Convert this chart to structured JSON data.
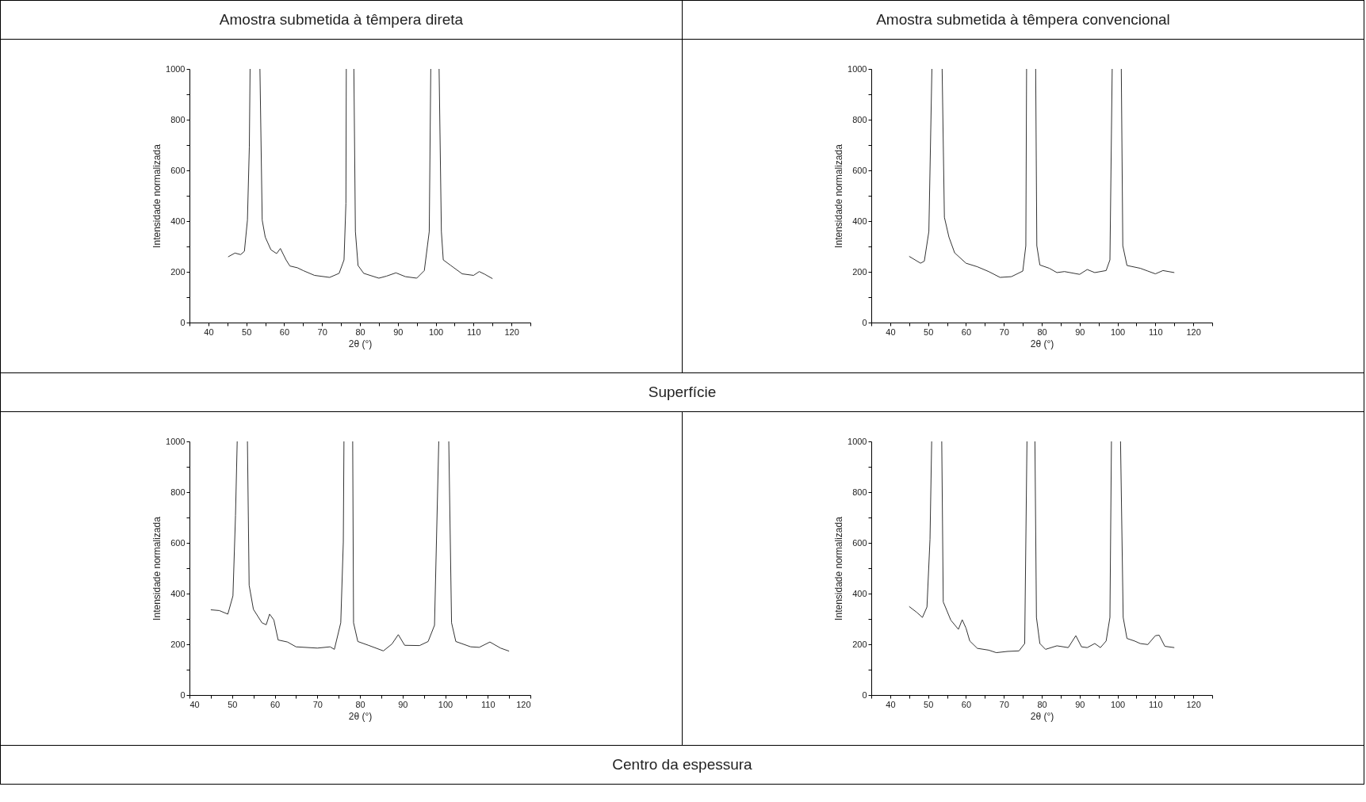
{
  "chart_data": [
    {
      "type": "line",
      "title": "Amostra submetida à têmpera direta",
      "annotations": [
        "Superfície"
      ],
      "xlabel": "2θ (°)",
      "ylabel": "Intensidade normalizada",
      "xlim": [
        35,
        125
      ],
      "xticks": [
        {
          "value": 35,
          "label": null
        },
        40,
        {
          "value": 45,
          "label": null
        },
        50,
        {
          "value": 55,
          "label": null
        },
        60,
        {
          "value": 65,
          "label": null
        },
        70,
        {
          "value": 75,
          "label": null
        },
        80,
        {
          "value": 85,
          "label": null
        },
        90,
        {
          "value": 95,
          "label": null
        },
        100,
        {
          "value": 105,
          "label": null
        },
        110,
        {
          "value": 115,
          "label": null
        },
        120,
        {
          "value": 125,
          "label": null
        }
      ],
      "ylim": [
        0,
        1000
      ],
      "yticks": [
        0,
        {
          "value": 100,
          "label": null
        },
        200,
        {
          "value": 300,
          "label": null
        },
        400,
        {
          "value": 500,
          "label": null
        },
        600,
        {
          "value": 700,
          "label": null
        },
        800,
        {
          "value": 900,
          "label": null
        },
        1000
      ],
      "series": [
        {
          "color": "#333333",
          "x": [
            45.2,
            47,
            48.5,
            49.5,
            50.3,
            50.8,
            51.0,
            52.3,
            53.6,
            54.2,
            55,
            56.5,
            58,
            59,
            60.5,
            61.5,
            63.5,
            65,
            68,
            72,
            74.5,
            75.8,
            76.3,
            76.4,
            77.4,
            78.4,
            78.8,
            79.5,
            81,
            85,
            87,
            89.5,
            92,
            95,
            97,
            98.3,
            98.7,
            99.8,
            100.9,
            101.5,
            102,
            104,
            107,
            110,
            111.5,
            113,
            115
          ],
          "values": [
            259,
            274,
            268,
            281,
            404,
            693,
            1000,
            null,
            1000,
            404,
            337,
            287,
            272,
            292,
            247,
            223,
            216,
            205,
            186,
            178,
            194,
            247,
            470,
            1000,
            null,
            1000,
            359,
            225,
            194,
            175,
            183,
            196,
            181,
            175,
            205,
            359,
            1000,
            null,
            1000,
            359,
            247,
            225,
            192,
            186,
            201,
            190,
            173
          ]
        }
      ]
    },
    {
      "type": "line",
      "title": "Amostra submetida à têmpera convencional",
      "xlabel": "2θ (°)",
      "ylabel": "Intensidade normalizada",
      "xlim": [
        35,
        125
      ],
      "xticks": [
        {
          "value": 35,
          "label": null
        },
        40,
        {
          "value": 45,
          "label": null
        },
        50,
        {
          "value": 55,
          "label": null
        },
        60,
        {
          "value": 65,
          "label": null
        },
        70,
        {
          "value": 75,
          "label": null
        },
        80,
        {
          "value": 85,
          "label": null
        },
        90,
        {
          "value": 95,
          "label": null
        },
        100,
        {
          "value": 105,
          "label": null
        },
        110,
        {
          "value": 115,
          "label": null
        },
        120,
        {
          "value": 125,
          "label": null
        }
      ],
      "ylim": [
        0,
        1000
      ],
      "yticks": [
        0,
        {
          "value": 100,
          "label": null
        },
        200,
        {
          "value": 300,
          "label": null
        },
        400,
        {
          "value": 500,
          "label": null
        },
        600,
        {
          "value": 700,
          "label": null
        },
        800,
        {
          "value": 900,
          "label": null
        },
        1000
      ],
      "series": [
        {
          "color": "#333333",
          "x": [
            45,
            48,
            49,
            50.2,
            51.0,
            52.3,
            53.7,
            54.3,
            55.5,
            57,
            60,
            63,
            66,
            69,
            72,
            75,
            75.8,
            76.0,
            77.2,
            78.4,
            78.7,
            79.5,
            82,
            84,
            86,
            90,
            92,
            94,
            97,
            98,
            98.6,
            99.8,
            101.0,
            101.4,
            102.5,
            106,
            108,
            110,
            112,
            115
          ],
          "values": [
            261,
            234,
            242,
            359,
            1000,
            null,
            1000,
            415,
            337,
            275,
            234,
            220,
            201,
            178,
            181,
            203,
            303,
            1000,
            null,
            1000,
            303,
            227,
            214,
            197,
            201,
            190,
            209,
            197,
            205,
            247,
            1000,
            null,
            1000,
            303,
            225,
            214,
            203,
            192,
            205,
            197
          ]
        }
      ]
    },
    {
      "type": "line",
      "annotations": [
        "Centro da espessura"
      ],
      "xlabel": "2θ (°)",
      "ylabel": "Intensidade normalizada",
      "xlim": [
        40,
        120
      ],
      "xticks": [
        40,
        {
          "value": 45,
          "label": null
        },
        50,
        {
          "value": 55,
          "label": null
        },
        60,
        {
          "value": 65,
          "label": null
        },
        70,
        {
          "value": 75,
          "label": null
        },
        80,
        {
          "value": 85,
          "label": null
        },
        90,
        {
          "value": 95,
          "label": null
        },
        100,
        {
          "value": 105,
          "label": null
        },
        110,
        {
          "value": 115,
          "label": null
        },
        120
      ],
      "ylim": [
        0,
        1000
      ],
      "yticks": [
        0,
        {
          "value": 100,
          "label": null
        },
        200,
        {
          "value": 300,
          "label": null
        },
        400,
        {
          "value": 500,
          "label": null
        },
        600,
        {
          "value": 700,
          "label": null
        },
        800,
        {
          "value": 900,
          "label": null
        },
        1000
      ],
      "series": [
        {
          "color": "#333333",
          "x": [
            45,
            47,
            49,
            50.2,
            50.8,
            51.2,
            52.4,
            53.6,
            54,
            55,
            57,
            58,
            58.8,
            59.8,
            60.8,
            63,
            65,
            70,
            73,
            74,
            75.5,
            76.1,
            76.25,
            77.3,
            78.3,
            78.5,
            79.5,
            82,
            85.5,
            87.5,
            89,
            90.5,
            94,
            96,
            97.5,
            98.5,
            99.7,
            100.85,
            101.5,
            102.5,
            106,
            108,
            110.5,
            113,
            115
          ],
          "values": [
            336,
            333,
            319,
            391,
            708,
            1000,
            null,
            1000,
            433,
            338,
            285,
            277,
            319,
            296,
            217,
            209,
            190,
            185,
            190,
            180,
            285,
            603,
            1000,
            null,
            1000,
            285,
            211,
            196,
            174,
            201,
            238,
            196,
            195,
            211,
            275,
            1000,
            null,
            1000,
            285,
            211,
            190,
            188,
            209,
            185,
            173
          ]
        }
      ]
    },
    {
      "type": "line",
      "xlabel": "2θ (°)",
      "ylabel": "Intensidade normalizada",
      "xlim": [
        35,
        125
      ],
      "xticks": [
        {
          "value": 35,
          "label": null
        },
        40,
        {
          "value": 45,
          "label": null
        },
        50,
        {
          "value": 55,
          "label": null
        },
        60,
        {
          "value": 65,
          "label": null
        },
        70,
        {
          "value": 75,
          "label": null
        },
        80,
        {
          "value": 85,
          "label": null
        },
        90,
        {
          "value": 95,
          "label": null
        },
        100,
        {
          "value": 105,
          "label": null
        },
        110,
        {
          "value": 115,
          "label": null
        },
        120,
        {
          "value": 125,
          "label": null
        }
      ],
      "ylim": [
        0,
        1000
      ],
      "yticks": [
        0,
        {
          "value": 100,
          "label": null
        },
        200,
        {
          "value": 300,
          "label": null
        },
        400,
        {
          "value": 500,
          "label": null
        },
        600,
        {
          "value": 700,
          "label": null
        },
        800,
        {
          "value": 900,
          "label": null
        },
        1000
      ],
      "series": [
        {
          "color": "#333333",
          "x": [
            45,
            47,
            48.5,
            49.7,
            50.5,
            50.94,
            52.3,
            53.6,
            54,
            56,
            58,
            59,
            60,
            61,
            63,
            66,
            68,
            71,
            74,
            75.5,
            76.1,
            77.2,
            78.2,
            78.6,
            79.5,
            81,
            84,
            87,
            89,
            90.5,
            92,
            94,
            95.5,
            97,
            98,
            98.4,
            99.6,
            100.8,
            101.5,
            102.5,
            104.5,
            106,
            108,
            110,
            111,
            112.5,
            115
          ],
          "values": [
            349,
            326,
            306,
            347,
            614,
            1000,
            null,
            1000,
            367,
            295,
            259,
            297,
            264,
            213,
            184,
            177,
            167,
            172,
            174,
            203,
            1000,
            null,
            1000,
            306,
            203,
            180,
            194,
            187,
            234,
            190,
            187,
            203,
            187,
            213,
            306,
            1000,
            null,
            1000,
            306,
            223,
            213,
            203,
            199,
            234,
            236,
            192,
            187
          ]
        }
      ]
    }
  ]
}
